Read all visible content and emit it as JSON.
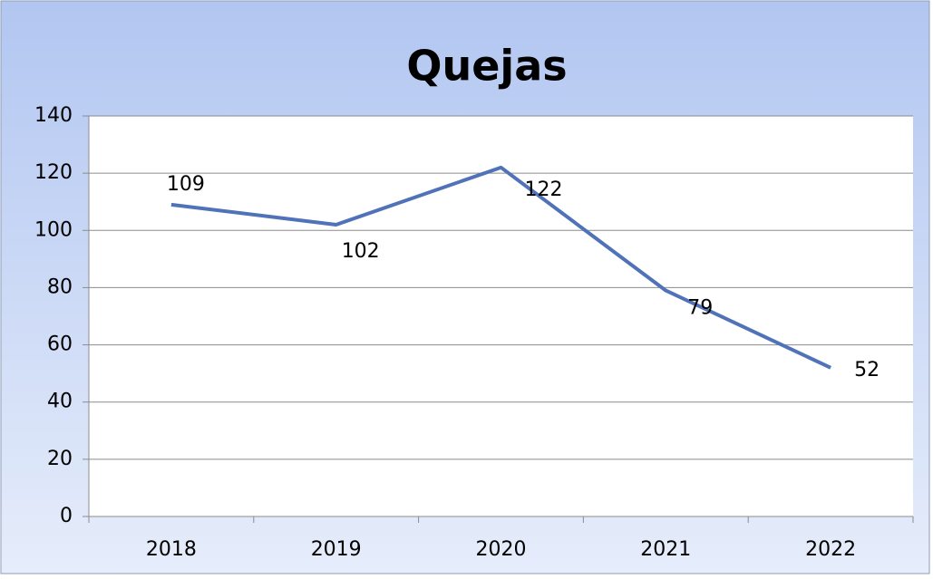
{
  "chart_data": {
    "type": "line",
    "title": "Quejas",
    "categories": [
      "2018",
      "2019",
      "2020",
      "2021",
      "2022"
    ],
    "series": [
      {
        "name": "Quejas",
        "color": "#4f72b8",
        "values": [
          109,
          102,
          122,
          79,
          52
        ]
      }
    ],
    "ylim": [
      0,
      140
    ],
    "yticks": [
      0,
      20,
      40,
      60,
      80,
      100,
      120,
      140
    ],
    "grid": true
  }
}
